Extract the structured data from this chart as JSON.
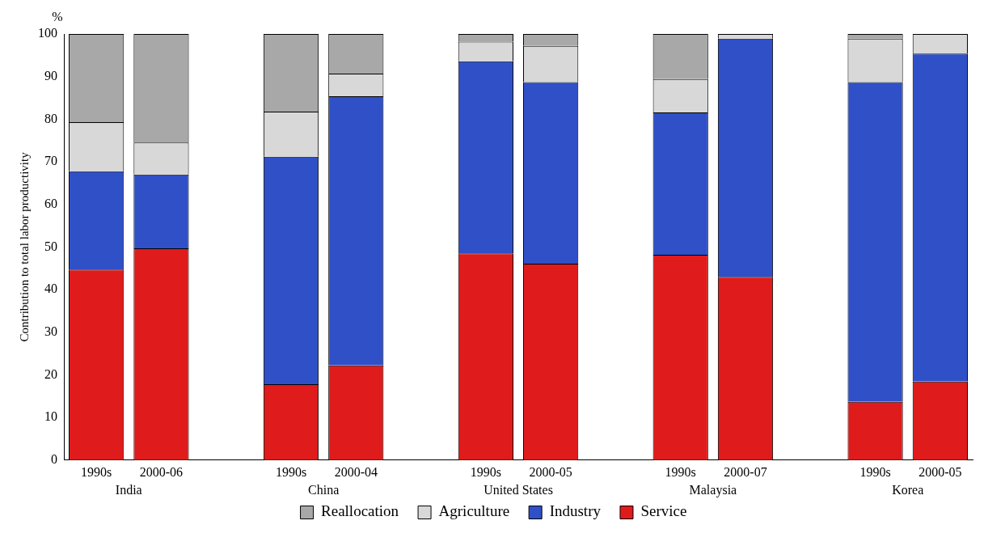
{
  "chart_data": {
    "type": "bar",
    "stacked": true,
    "ylabel": "Contribution to total labor productivity",
    "categories": [
      "1990s",
      "2000-06",
      null,
      "1990s",
      "2000-04",
      null,
      "1990s",
      "2000-05",
      null,
      "1990s",
      "2000-07",
      null,
      "1990s",
      "2000-05"
    ],
    "series": [
      {
        "name": "Service",
        "color": "#e01b1b",
        "values": [
          44.7,
          49.7,
          null,
          17.8,
          22.2,
          null,
          48.5,
          46.1,
          null,
          48.2,
          43,
          null,
          13.7,
          18.4
        ]
      },
      {
        "name": "Industry",
        "color": "#3050c8",
        "values": [
          23.1,
          17.3,
          null,
          53.4,
          63.2,
          null,
          45.1,
          42.6,
          null,
          33.4,
          55.9,
          null,
          75,
          77
        ]
      },
      {
        "name": "Agriculture",
        "color": "#d8d8d8",
        "values": [
          11.5,
          7.5,
          null,
          10.6,
          5.3,
          null,
          4.6,
          8.5,
          null,
          7.8,
          1.1,
          null,
          10.2,
          4.6
        ]
      },
      {
        "name": "Reallocation",
        "color": "#a8a8a8",
        "values": [
          20.7,
          25.5,
          null,
          18.2,
          9.3,
          null,
          1.8,
          2.8,
          null,
          10.6,
          0,
          null,
          1.1,
          0
        ]
      }
    ],
    "annotations": [
      "%",
      "India",
      "China",
      "United States",
      "Malaysia",
      "Korea"
    ],
    "ylim": [
      0,
      100
    ],
    "yticks": [
      0,
      10,
      20,
      30,
      40,
      50,
      60,
      70,
      80,
      90,
      100
    ],
    "grid": false,
    "legend": "bottom"
  }
}
